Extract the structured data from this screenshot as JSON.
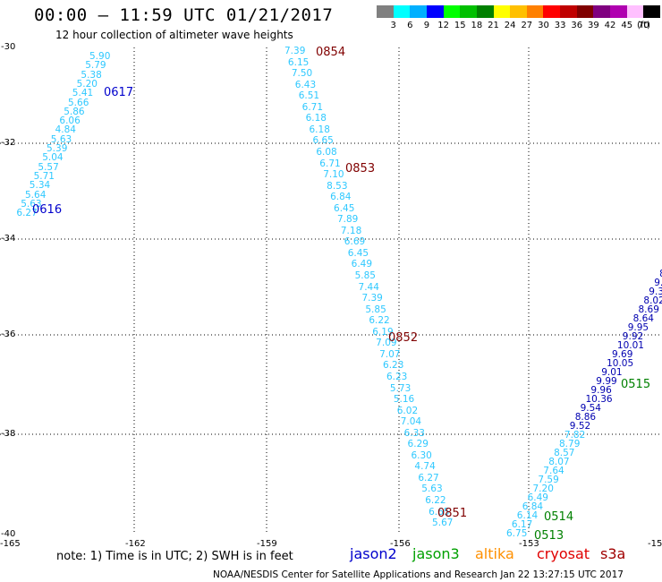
{
  "header": {
    "title": "00:00 – 11:59 UTC 01/21/2017",
    "subtitle": "12 hour collection of altimeter wave heights"
  },
  "legend": {
    "units": "(ft)",
    "swatch_colors": [
      "#808080",
      "#00ffff",
      "#00b0ff",
      "#0000ff",
      "#00ff00",
      "#00c000",
      "#008000",
      "#ffff00",
      "#ffc000",
      "#ff8000",
      "#ff0000",
      "#c00000",
      "#800000",
      "#800080",
      "#b000b0",
      "#ffc0ff",
      "#000000"
    ],
    "labels": [
      "3",
      "6",
      "9",
      "12",
      "15",
      "18",
      "21",
      "24",
      "27",
      "30",
      "33",
      "36",
      "39",
      "42",
      "45",
      "70"
    ]
  },
  "axes": {
    "lat_labels": [
      "-30",
      "-32",
      "-34",
      "-36",
      "-38",
      "-40"
    ],
    "lon_labels": [
      "-165",
      "-162",
      "-159",
      "-156",
      "-153",
      "-15"
    ]
  },
  "tracks": [
    {
      "name": "track-0616-0617",
      "color": "#2ec8ff",
      "values": [
        "5.90",
        "5.79",
        "5.38",
        "5.20",
        "5.41",
        "5.66",
        "5.86",
        "6.06",
        "4.84",
        "5.63",
        "5.39",
        "5.04",
        "5.57",
        "5.71",
        "5.34",
        "5.64",
        "5.63",
        "6.27"
      ],
      "times": [
        {
          "label": "0617",
          "color": "#0000cc"
        },
        {
          "label": "0616",
          "color": "#0000cc"
        }
      ]
    },
    {
      "name": "track-0851-0854",
      "color": "#2ec8ff",
      "values": [
        "7.39",
        "6.15",
        "7.50",
        "6.43",
        "6.51",
        "6.71",
        "6.18",
        "6.18",
        "6.65",
        "6.08",
        "6.71",
        "7.10",
        "8.53",
        "6.84",
        "6.45",
        "7.89",
        "7.18",
        "6.69",
        "6.45",
        "6.49",
        "5.85",
        "7.44",
        "7.39",
        "5.85",
        "6.22",
        "6.19",
        "7.09",
        "7.07",
        "6.23",
        "6.23",
        "5.73",
        "5.16",
        "6.02",
        "7.04",
        "6.33",
        "6.29",
        "6.30",
        "4.74",
        "6.27",
        "5.63",
        "6.22",
        "6.65",
        "5.67"
      ],
      "times": [
        {
          "label": "0854",
          "color": "#800000"
        },
        {
          "label": "0853",
          "color": "#800000"
        },
        {
          "label": "0852",
          "color": "#800000"
        },
        {
          "label": "0851",
          "color": "#800000"
        }
      ]
    },
    {
      "name": "track-0513-0515",
      "color": "#2ec8ff",
      "values": [
        "6.75",
        "6.17",
        "6.14",
        "6.84",
        "6.49",
        "7.20",
        "7.59",
        "7.64",
        "8.07",
        "8.57",
        "8.79",
        "7.82",
        "9.52",
        "8.86",
        "9.54",
        "10.36",
        "9.96",
        "9.99",
        "9.01",
        "10.05",
        "9.69",
        "10.01",
        "9.92",
        "9.95",
        "8.64",
        "8.69",
        "8.02",
        "9.3",
        "9.",
        "8"
      ],
      "dark_from": 12,
      "dark_color": "#0000b0",
      "times": [
        {
          "label": "0515",
          "color": "#008000"
        },
        {
          "label": "0514",
          "color": "#008000"
        },
        {
          "label": "0513",
          "color": "#008000"
        }
      ]
    }
  ],
  "footer": {
    "note": "note: 1) Time is in UTC; 2) SWH is in feet",
    "satellites": [
      {
        "label": "jason2",
        "color": "#0000cc"
      },
      {
        "label": "jason3",
        "color": "#00a000"
      },
      {
        "label": "altika",
        "color": "#ff9000"
      },
      {
        "label": "cryosat",
        "color": "#e00000"
      },
      {
        "label": "s3a",
        "color": "#a00000"
      }
    ],
    "credit": "NOAA/NESDIS Center for Satellite Applications and Research    Jan 22 13:27:15 UTC 2017"
  }
}
